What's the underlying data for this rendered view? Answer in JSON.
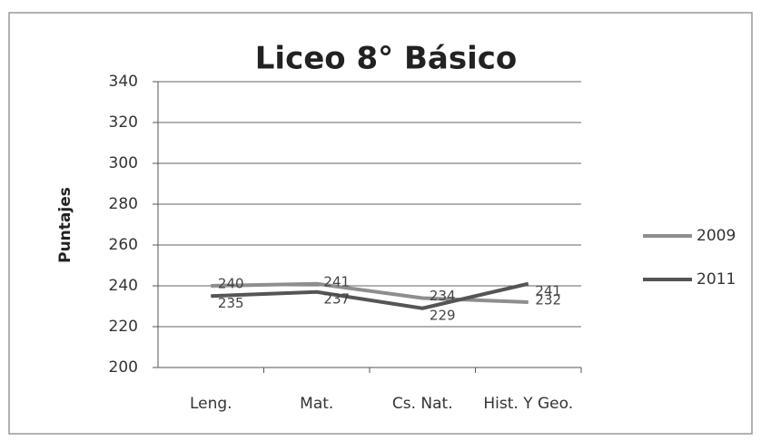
{
  "chart_data": {
    "type": "line",
    "title": "Liceo 8° Básico",
    "y_label": "Puntajes",
    "categories": [
      "Leng.",
      "Mat.",
      "Cs. Nat.",
      "Hist. Y Geo."
    ],
    "series": [
      {
        "name": "2009",
        "color": "#8e8e8e",
        "values": [
          240,
          241,
          234,
          232
        ]
      },
      {
        "name": "2011",
        "color": "#555555",
        "values": [
          235,
          237,
          229,
          241
        ]
      }
    ],
    "ylim": [
      200,
      340
    ],
    "yticks": [
      200,
      220,
      240,
      260,
      280,
      300,
      320,
      340
    ],
    "grid": true,
    "legend": "right"
  }
}
